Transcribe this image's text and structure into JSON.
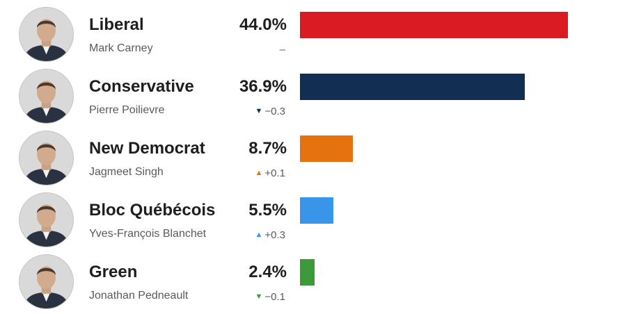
{
  "chart_data": {
    "type": "bar",
    "orientation": "horizontal",
    "xlim": [
      0,
      50
    ],
    "categories": [
      "Liberal",
      "Conservative",
      "New Democrat",
      "Bloc Québécois",
      "Green"
    ],
    "values": [
      44.0,
      36.9,
      8.7,
      5.5,
      2.4
    ],
    "rows": [
      {
        "party": "Liberal",
        "leader": "Mark Carney",
        "value": 44.0,
        "pct_label": "44.0%",
        "change_label": "–",
        "change_dir": "none",
        "color": "#da1b24",
        "arrow_color": "#5a5a5a",
        "icon": "person-photo-icon"
      },
      {
        "party": "Conservative",
        "leader": "Pierre Poilievre",
        "value": 36.9,
        "pct_label": "36.9%",
        "change_label": "−0.3",
        "change_dir": "down",
        "color": "#132e53",
        "arrow_color": "#132e53",
        "icon": "person-photo-icon"
      },
      {
        "party": "New Democrat",
        "leader": "Jagmeet Singh",
        "value": 8.7,
        "pct_label": "8.7%",
        "change_label": "+0.1",
        "change_dir": "up",
        "color": "#e4720f",
        "arrow_color": "#e4720f",
        "icon": "person-photo-icon"
      },
      {
        "party": "Bloc Québécois",
        "leader": "Yves-François Blanchet",
        "value": 5.5,
        "pct_label": "5.5%",
        "change_label": "+0.3",
        "change_dir": "up",
        "color": "#3895ea",
        "arrow_color": "#3895ea",
        "icon": "person-photo-icon"
      },
      {
        "party": "Green",
        "leader": "Jonathan Pedneault",
        "value": 2.4,
        "pct_label": "2.4%",
        "change_label": "−0.1",
        "change_dir": "down",
        "color": "#3d9a3a",
        "arrow_color": "#3d9a3a",
        "icon": "person-photo-icon"
      }
    ],
    "grid": false,
    "legend": "none"
  }
}
